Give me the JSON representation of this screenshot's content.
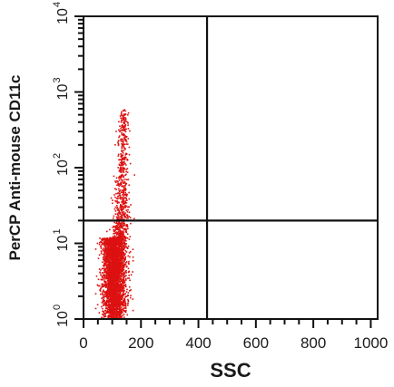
{
  "chart_data": {
    "type": "scatter",
    "title": "",
    "xlabel": "SSC",
    "ylabel": "PerCP Anti-mouse CD11c",
    "xlim": [
      0,
      1024
    ],
    "ylim_log10": [
      0,
      4
    ],
    "y_scale": "log",
    "x_ticks": [
      {
        "value": 0,
        "label": "0"
      },
      {
        "value": 200,
        "label": "200"
      },
      {
        "value": 400,
        "label": "400"
      },
      {
        "value": 600,
        "label": "600"
      },
      {
        "value": 800,
        "label": "800"
      },
      {
        "value": 1000,
        "label": "1000"
      }
    ],
    "y_ticks": [
      {
        "value": 1,
        "base": "10",
        "exp": "0"
      },
      {
        "value": 10,
        "base": "10",
        "exp": "1"
      },
      {
        "value": 100,
        "base": "10",
        "exp": "2"
      },
      {
        "value": 1000,
        "base": "10",
        "exp": "3"
      },
      {
        "value": 10000,
        "base": "10",
        "exp": "4"
      }
    ],
    "gates": {
      "vertical_x": 430,
      "horizontal_y": 20
    },
    "population": {
      "color": "#dd1111",
      "x_center": 105,
      "x_spread": 28,
      "y_core_range": [
        1,
        12
      ],
      "y_tail_range": [
        12,
        600
      ],
      "core_events": 3200,
      "tail_events": 700
    }
  }
}
